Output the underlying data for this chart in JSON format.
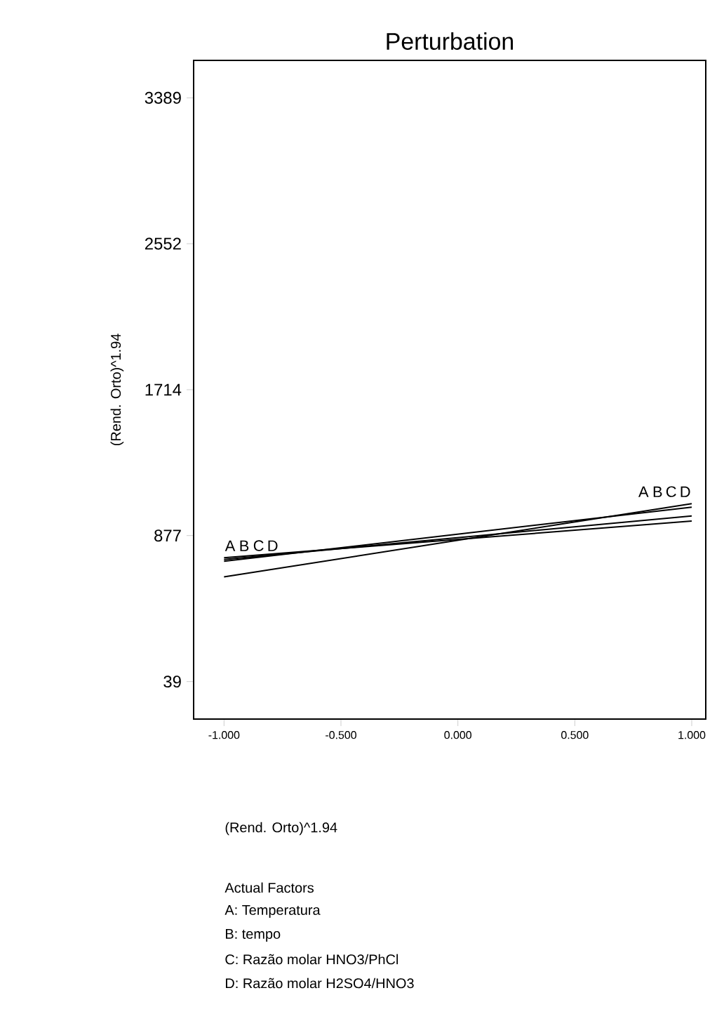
{
  "chart_data": {
    "type": "line",
    "title": "Perturbation",
    "ylabel": "(Rend. Orto)^1.94",
    "x": [
      -1,
      1
    ],
    "xlim": [
      -1.13,
      1.06
    ],
    "ylim": [
      -176,
      3604
    ],
    "xticks": [
      {
        "value": -1,
        "label": "-1.000"
      },
      {
        "value": -0.5,
        "label": "-0.500"
      },
      {
        "value": 0,
        "label": "0.000"
      },
      {
        "value": 0.5,
        "label": "0.500"
      },
      {
        "value": 1,
        "label": "1.000"
      }
    ],
    "yticks": [
      39,
      877,
      1714,
      2552,
      3389
    ],
    "line_style": "solid",
    "series": [
      {
        "name": "A",
        "color": "#000000",
        "values": [
          640,
          1060
        ]
      },
      {
        "name": "B",
        "color": "#000000",
        "values": [
          740,
          990
        ]
      },
      {
        "name": "C",
        "color": "#000000",
        "values": [
          750,
          960
        ]
      },
      {
        "name": "D",
        "color": "#000000",
        "values": [
          730,
          1040
        ]
      }
    ],
    "annotations": [
      "(Rend. Orto)^1.94",
      "Actual Factors",
      "A: Temperatura",
      "B: tempo",
      "C: Razão molar HNO3/PhCl",
      "D: Razão molar H2SO4/HNO3"
    ]
  }
}
